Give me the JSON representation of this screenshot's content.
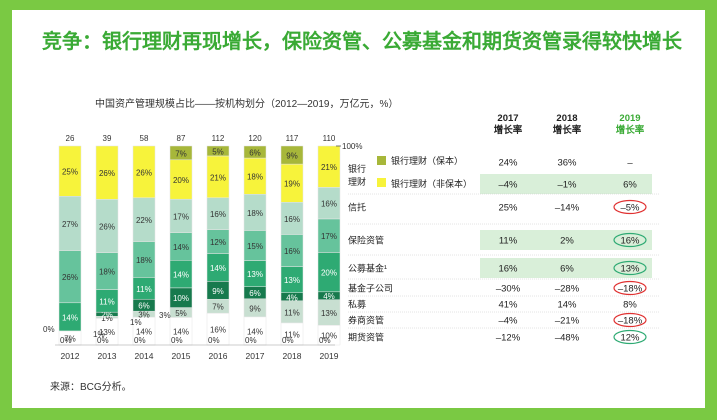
{
  "title": "竞争：银行理财再现增长，保险资管、公募基金和期货资管录得较快增长",
  "subtitle": "中国资产管理规模占比——按机构划分（2012—2019，万亿元，%）",
  "source": "来源：BCG分析。",
  "hundred_label": "100%",
  "colors": {
    "background": "#7ac943",
    "title": "#3aaa35",
    "bank_guaranteed": "#a7b73a",
    "bank_non_guaranteed": "#f7f33b",
    "trust": "#b5dcca",
    "insurance": "#66c39c",
    "mutual_fund": "#2eaa73",
    "fund_subsidiary": "#177a4d",
    "private_fund": "#c8dfd1",
    "securities": "#ffffff",
    "futures": "#8e8e8e",
    "row_highlight": "#d9efd9",
    "circle_red": "#e03030",
    "circle_green": "#2eaa73"
  },
  "growth_headers": [
    {
      "year": "2017",
      "label": "增长率"
    },
    {
      "year": "2018",
      "label": "增长率"
    },
    {
      "year": "2019",
      "label": "增长率"
    }
  ],
  "legend": {
    "bank_group": "银行理财",
    "bank_guaranteed": "银行理财（保本）",
    "bank_non_guaranteed": "银行理财（非保本）"
  },
  "growth_rows": [
    {
      "name": "bank_guaranteed",
      "label": "",
      "g2017": "24%",
      "g2018": "36%",
      "g2019": "–",
      "highlight": false,
      "circle": ""
    },
    {
      "name": "bank_non_guaranteed",
      "label": "",
      "g2017": "–4%",
      "g2018": "–1%",
      "g2019": "6%",
      "highlight": true,
      "circle": ""
    },
    {
      "name": "trust",
      "label": "信托",
      "g2017": "25%",
      "g2018": "–14%",
      "g2019": "–5%",
      "highlight": false,
      "circle": "red"
    },
    {
      "name": "insurance",
      "label": "保险资管",
      "g2017": "11%",
      "g2018": "2%",
      "g2019": "16%",
      "highlight": true,
      "circle": "green"
    },
    {
      "name": "mutual_fund",
      "label": "公募基金¹",
      "g2017": "16%",
      "g2018": "6%",
      "g2019": "13%",
      "highlight": true,
      "circle": "green"
    },
    {
      "name": "fund_subsidiary",
      "label": "基金子公司",
      "g2017": "–30%",
      "g2018": "–28%",
      "g2019": "–18%",
      "highlight": false,
      "circle": "red"
    },
    {
      "name": "private_fund",
      "label": "私募",
      "g2017": "41%",
      "g2018": "14%",
      "g2019": "8%",
      "highlight": false,
      "circle": ""
    },
    {
      "name": "securities",
      "label": "券商资管",
      "g2017": "–4%",
      "g2018": "–21%",
      "g2019": "–18%",
      "highlight": false,
      "circle": "red"
    },
    {
      "name": "futures",
      "label": "期货资管",
      "g2017": "–12%",
      "g2018": "–48%",
      "g2019": "12%",
      "highlight": false,
      "circle": "green"
    }
  ],
  "chart_data": {
    "type": "bar",
    "stacked": true,
    "normalized": true,
    "categories": [
      "2012",
      "2013",
      "2014",
      "2015",
      "2016",
      "2017",
      "2018",
      "2019"
    ],
    "totals": [
      26,
      39,
      58,
      87,
      112,
      120,
      117,
      110
    ],
    "series": [
      {
        "name": "期货资管",
        "key": "futures",
        "values": [
          0,
          0,
          0,
          0,
          0,
          0,
          0,
          0
        ],
        "labels": [
          "0%",
          "0%",
          "0%",
          "0%",
          "0%",
          "0%",
          "0%",
          "0%"
        ]
      },
      {
        "name": "券商资管",
        "key": "securities",
        "values": [
          7,
          13,
          14,
          14,
          16,
          14,
          11,
          10
        ],
        "labels": [
          "7%",
          "13%",
          "14%",
          "14%",
          "16%",
          "14%",
          "11%",
          "10%"
        ]
      },
      {
        "name": "私募",
        "key": "private_fund",
        "values": [
          0,
          1,
          3,
          5,
          7,
          9,
          11,
          13
        ],
        "labels": [
          "0%",
          "1%",
          "3%",
          "5%",
          "7%",
          "9%",
          "11%",
          "13%"
        ]
      },
      {
        "name": "基金子公司",
        "key": "fund_subsidiary",
        "values": [
          0,
          2,
          6,
          10,
          9,
          6,
          4,
          4
        ],
        "labels": [
          "0%",
          "2%",
          "6%",
          "10%",
          "9%",
          "6%",
          "4%",
          "4%"
        ]
      },
      {
        "name": "公募基金",
        "key": "mutual_fund",
        "values": [
          14,
          11,
          11,
          14,
          14,
          13,
          13,
          20
        ],
        "labels": [
          "14%",
          "11%",
          "11%",
          "14%",
          "14%",
          "13%",
          "13%",
          "20%"
        ]
      },
      {
        "name": "保险资管",
        "key": "insurance",
        "values": [
          26,
          18,
          18,
          14,
          12,
          15,
          16,
          17
        ],
        "labels": [
          "26%",
          "18%",
          "18%",
          "14%",
          "12%",
          "15%",
          "16%",
          "17%"
        ]
      },
      {
        "name": "信托",
        "key": "trust",
        "values": [
          27,
          26,
          22,
          17,
          16,
          18,
          16,
          16
        ],
        "labels": [
          "27%",
          "26%",
          "22%",
          "17%",
          "16%",
          "18%",
          "16%",
          "16%"
        ]
      },
      {
        "name": "银行理财（非保本）",
        "key": "bank_non_guaranteed",
        "values": [
          25,
          26,
          26,
          20,
          21,
          18,
          19,
          21
        ],
        "labels": [
          "25%",
          "26%",
          "26%",
          "20%",
          "21%",
          "18%",
          "19%",
          "21%"
        ]
      },
      {
        "name": "银行理财（保本）",
        "key": "bank_guaranteed",
        "values": [
          0,
          0,
          0,
          7,
          5,
          6,
          9,
          0
        ],
        "labels": [
          "",
          "",
          "",
          "7%",
          "5%",
          "6%",
          "9%",
          ""
        ]
      }
    ]
  }
}
